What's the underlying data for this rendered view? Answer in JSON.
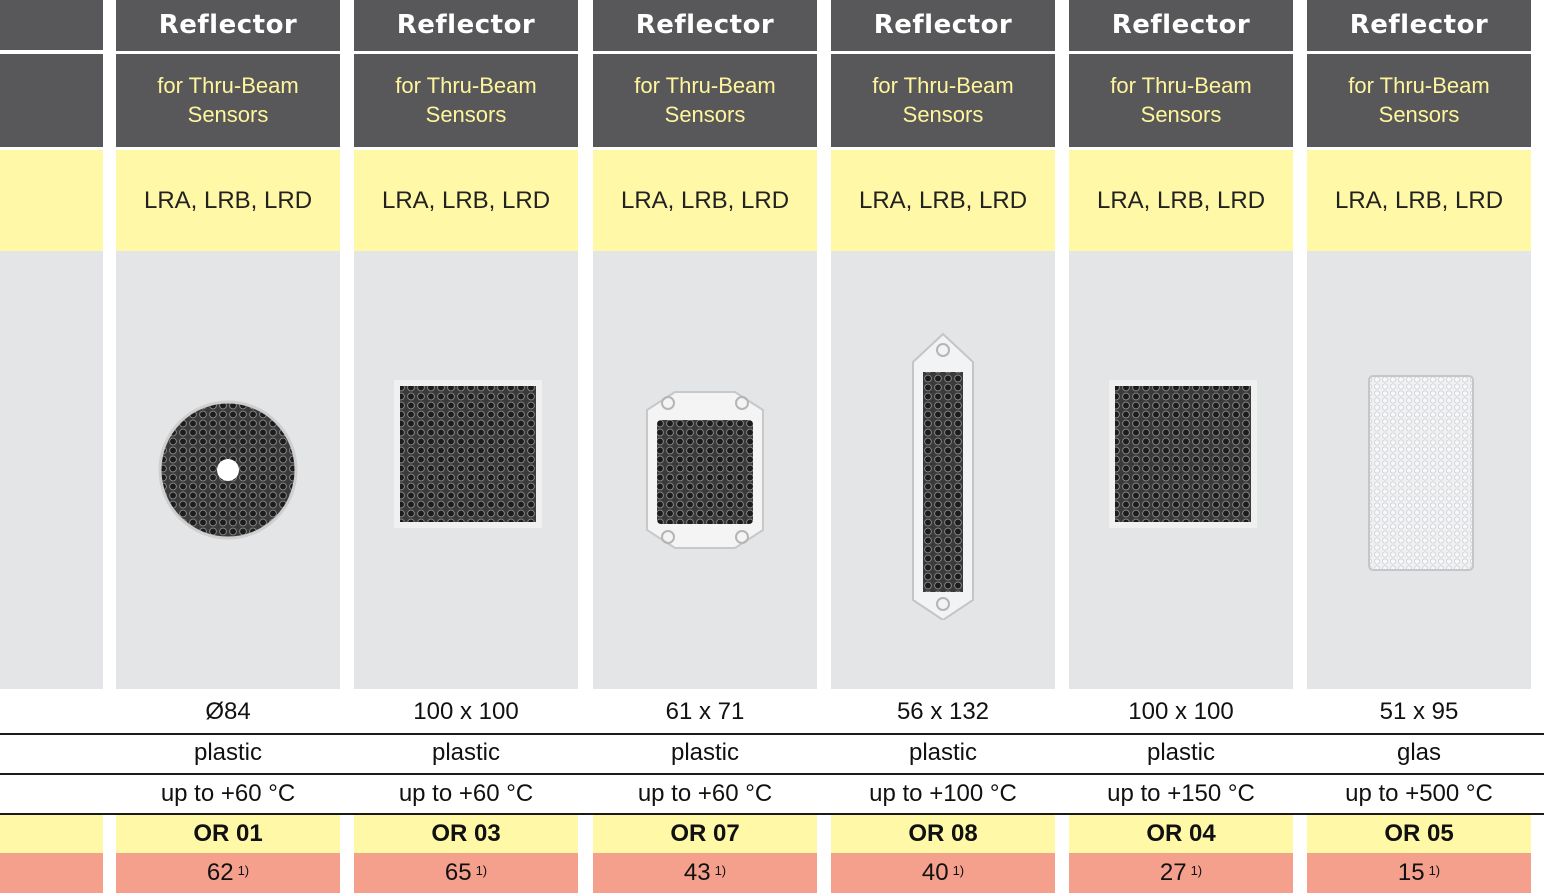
{
  "columns": [
    {
      "title": "Reflector",
      "subtitle_1": "for Thru-Beam",
      "subtitle_2": "Sensors",
      "types": "LRA, LRB, LRD",
      "dimensions": "Ø84",
      "material": "plastic",
      "temperature": "up to +60 °C",
      "order_no": "OR 01",
      "price": "62",
      "footnote": "1)",
      "image": "round-reflector"
    },
    {
      "title": "Reflector",
      "subtitle_1": "for Thru-Beam",
      "subtitle_2": "Sensors",
      "types": "LRA, LRB, LRD",
      "dimensions": "100 x 100",
      "material": "plastic",
      "temperature": "up to +60 °C",
      "order_no": "OR 03",
      "price": "65",
      "footnote": "1)",
      "image": "square-reflector"
    },
    {
      "title": "Reflector",
      "subtitle_1": "for Thru-Beam",
      "subtitle_2": "Sensors",
      "types": "LRA, LRB, LRD",
      "dimensions": "61 x 71",
      "material": "plastic",
      "temperature": "up to +60 °C",
      "order_no": "OR 07",
      "price": "43",
      "footnote": "1)",
      "image": "small-reflector-with-tabs"
    },
    {
      "title": "Reflector",
      "subtitle_1": "for Thru-Beam",
      "subtitle_2": "Sensors",
      "types": "LRA, LRB, LRD",
      "dimensions": "56 x 132",
      "material": "plastic",
      "temperature": "up to +100 °C",
      "order_no": "OR 08",
      "price": "40",
      "footnote": "1)",
      "image": "tall-reflector-with-tabs"
    },
    {
      "title": "Reflector",
      "subtitle_1": "for Thru-Beam",
      "subtitle_2": "Sensors",
      "types": "LRA, LRB, LRD",
      "dimensions": "100 x 100",
      "material": "plastic",
      "temperature": "up to +150 °C",
      "order_no": "OR 04",
      "price": "27",
      "footnote": "1)",
      "image": "square-reflector"
    },
    {
      "title": "Reflector",
      "subtitle_1": "for Thru-Beam",
      "subtitle_2": "Sensors",
      "types": "LRA, LRB, LRD",
      "dimensions": "51 x 95",
      "material": "glas",
      "temperature": "up to +500 °C",
      "order_no": "OR 05",
      "price": "15",
      "footnote": "1)",
      "image": "glass-reflector"
    }
  ],
  "colors": {
    "header": "#58585a",
    "header_text": "#ffffff",
    "subtitle_text": "#fff59d",
    "types_band": "#fff8a6",
    "image_band": "#e4e5e6",
    "order_band": "#fff8a6",
    "price_band": "#f5a08d",
    "reflector_dark": "#2a2a2a"
  }
}
